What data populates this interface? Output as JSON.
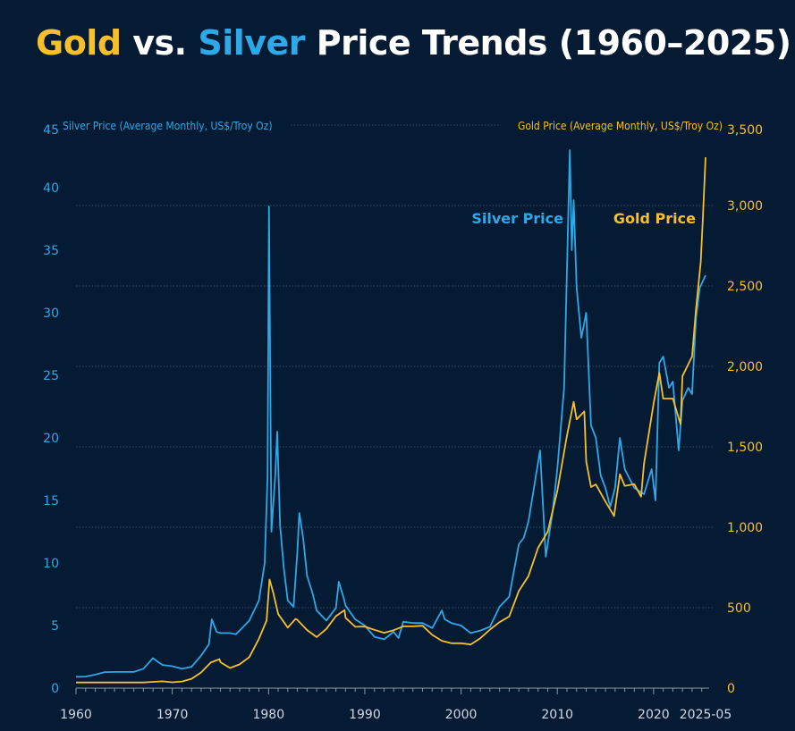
{
  "title": {
    "part1": "Gold",
    "part2": " vs. ",
    "part3": "Silver",
    "part4": " Price Trends (1960–2025)"
  },
  "colors": {
    "background": "#051a33",
    "gold": "#f6c02c",
    "silver": "#2ea8e6",
    "grid": "#4a5f78",
    "axis_text": "#cfd8e3"
  },
  "chart_data": {
    "type": "line",
    "x_unit": "year",
    "x_ticks": [
      "1960",
      "1970",
      "1980",
      "1990",
      "2000",
      "2010",
      "2020",
      "2025-05"
    ],
    "x_range": [
      1960,
      2025.4
    ],
    "left_axis": {
      "label": "Silver Price (Average Monthly, US$/Troy Oz)",
      "ticks": [
        "0",
        "5",
        "10",
        "15",
        "20",
        "25",
        "30",
        "35",
        "40",
        "45"
      ],
      "range": [
        0,
        45
      ]
    },
    "right_axis": {
      "label": "Gold Price (Average Monthly, US$/Troy Oz)",
      "ticks": [
        "0",
        "500",
        "1,000",
        "1,500",
        "2,000",
        "2,500",
        "3,000",
        "3,500"
      ],
      "range": [
        0,
        3500
      ]
    },
    "grid": "horizontal dotted",
    "series": [
      {
        "name": "Silver Price",
        "axis": "left",
        "points": [
          [
            1960,
            0.91
          ],
          [
            1961,
            0.92
          ],
          [
            1962,
            1.08
          ],
          [
            1963,
            1.28
          ],
          [
            1964,
            1.29
          ],
          [
            1966,
            1.29
          ],
          [
            1967,
            1.55
          ],
          [
            1968,
            2.4
          ],
          [
            1968.5,
            2.1
          ],
          [
            1969,
            1.85
          ],
          [
            1970,
            1.75
          ],
          [
            1971,
            1.55
          ],
          [
            1972,
            1.7
          ],
          [
            1973,
            2.6
          ],
          [
            1973.8,
            3.5
          ],
          [
            1974.1,
            5.5
          ],
          [
            1974.6,
            4.5
          ],
          [
            1975,
            4.4
          ],
          [
            1976,
            4.4
          ],
          [
            1976.6,
            4.3
          ],
          [
            1977,
            4.6
          ],
          [
            1978,
            5.4
          ],
          [
            1979,
            7.0
          ],
          [
            1979.6,
            10.0
          ],
          [
            1979.9,
            17.0
          ],
          [
            1980.05,
            38.5
          ],
          [
            1980.3,
            12.5
          ],
          [
            1980.7,
            17.0
          ],
          [
            1980.9,
            20.5
          ],
          [
            1981.2,
            13.0
          ],
          [
            1981.6,
            9.5
          ],
          [
            1982,
            7.0
          ],
          [
            1982.6,
            6.5
          ],
          [
            1983,
            11.0
          ],
          [
            1983.2,
            14.0
          ],
          [
            1983.6,
            12.0
          ],
          [
            1984,
            9.0
          ],
          [
            1984.6,
            7.5
          ],
          [
            1985,
            6.2
          ],
          [
            1986,
            5.4
          ],
          [
            1987,
            6.4
          ],
          [
            1987.3,
            8.5
          ],
          [
            1987.8,
            7.2
          ],
          [
            1988,
            6.6
          ],
          [
            1989,
            5.5
          ],
          [
            1990,
            5.0
          ],
          [
            1991,
            4.1
          ],
          [
            1992,
            3.9
          ],
          [
            1993,
            4.5
          ],
          [
            1993.5,
            4.0
          ],
          [
            1994,
            5.3
          ],
          [
            1995,
            5.2
          ],
          [
            1996,
            5.2
          ],
          [
            1997,
            4.8
          ],
          [
            1998,
            6.2
          ],
          [
            1998.3,
            5.5
          ],
          [
            1999,
            5.2
          ],
          [
            2000,
            5.0
          ],
          [
            2001,
            4.4
          ],
          [
            2002,
            4.6
          ],
          [
            2003,
            4.9
          ],
          [
            2004,
            6.5
          ],
          [
            2005,
            7.3
          ],
          [
            2006,
            11.5
          ],
          [
            2006.5,
            12.0
          ],
          [
            2007,
            13.3
          ],
          [
            2008.2,
            19.0
          ],
          [
            2008.8,
            10.5
          ],
          [
            2009.5,
            14.0
          ],
          [
            2010,
            17.5
          ],
          [
            2010.7,
            24.0
          ],
          [
            2011.3,
            43.0
          ],
          [
            2011.5,
            35.0
          ],
          [
            2011.7,
            39.0
          ],
          [
            2012,
            32.0
          ],
          [
            2012.5,
            28.0
          ],
          [
            2013,
            30.0
          ],
          [
            2013.5,
            21.0
          ],
          [
            2014,
            20.0
          ],
          [
            2014.5,
            17.0
          ],
          [
            2015,
            16.0
          ],
          [
            2015.5,
            14.5
          ],
          [
            2016,
            16.0
          ],
          [
            2016.5,
            20.0
          ],
          [
            2017,
            17.5
          ],
          [
            2018,
            16.0
          ],
          [
            2019,
            15.5
          ],
          [
            2019.8,
            17.5
          ],
          [
            2020.2,
            15.0
          ],
          [
            2020.6,
            26.0
          ],
          [
            2021,
            26.5
          ],
          [
            2021.6,
            24.0
          ],
          [
            2022,
            24.5
          ],
          [
            2022.6,
            19.0
          ],
          [
            2023,
            23.0
          ],
          [
            2023.6,
            24.0
          ],
          [
            2024,
            23.5
          ],
          [
            2024.4,
            29.5
          ],
          [
            2024.8,
            32.0
          ],
          [
            2025.4,
            33.0
          ]
        ]
      },
      {
        "name": "Gold Price",
        "axis": "right",
        "points": [
          [
            1960,
            35
          ],
          [
            1967,
            35
          ],
          [
            1968,
            39
          ],
          [
            1969,
            42
          ],
          [
            1970,
            36
          ],
          [
            1971,
            41
          ],
          [
            1972,
            58
          ],
          [
            1973,
            97
          ],
          [
            1974,
            159
          ],
          [
            1974.9,
            180
          ],
          [
            1975,
            161
          ],
          [
            1976,
            125
          ],
          [
            1977,
            148
          ],
          [
            1978,
            193
          ],
          [
            1979,
            306
          ],
          [
            1979.8,
            420
          ],
          [
            1980.1,
            675
          ],
          [
            1980.5,
            590
          ],
          [
            1981,
            460
          ],
          [
            1982,
            376
          ],
          [
            1982.8,
            430
          ],
          [
            1983,
            424
          ],
          [
            1984,
            361
          ],
          [
            1985,
            317
          ],
          [
            1986,
            368
          ],
          [
            1987,
            447
          ],
          [
            1987.9,
            485
          ],
          [
            1988,
            437
          ],
          [
            1989,
            381
          ],
          [
            1990,
            383
          ],
          [
            1991,
            362
          ],
          [
            1992,
            344
          ],
          [
            1993,
            360
          ],
          [
            1994,
            384
          ],
          [
            1995,
            384
          ],
          [
            1996,
            388
          ],
          [
            1997,
            331
          ],
          [
            1998,
            294
          ],
          [
            1999,
            279
          ],
          [
            2000,
            279
          ],
          [
            2001,
            271
          ],
          [
            2002,
            310
          ],
          [
            2003,
            364
          ],
          [
            2004,
            410
          ],
          [
            2005,
            445
          ],
          [
            2006,
            604
          ],
          [
            2007,
            696
          ],
          [
            2008,
            872
          ],
          [
            2009,
            972
          ],
          [
            2010,
            1225
          ],
          [
            2011,
            1570
          ],
          [
            2011.7,
            1780
          ],
          [
            2012,
            1670
          ],
          [
            2012.8,
            1720
          ],
          [
            2013,
            1410
          ],
          [
            2013.5,
            1250
          ],
          [
            2014,
            1266
          ],
          [
            2015,
            1160
          ],
          [
            2015.9,
            1070
          ],
          [
            2016.5,
            1330
          ],
          [
            2017,
            1257
          ],
          [
            2018,
            1268
          ],
          [
            2018.7,
            1190
          ],
          [
            2019,
            1393
          ],
          [
            2020,
            1770
          ],
          [
            2020.6,
            1960
          ],
          [
            2021,
            1800
          ],
          [
            2022,
            1800
          ],
          [
            2022.8,
            1640
          ],
          [
            2023,
            1940
          ],
          [
            2023.9,
            2050
          ],
          [
            2024,
            2060
          ],
          [
            2024.4,
            2350
          ],
          [
            2024.9,
            2650
          ],
          [
            2025.1,
            2900
          ],
          [
            2025.4,
            3300
          ]
        ]
      }
    ]
  }
}
